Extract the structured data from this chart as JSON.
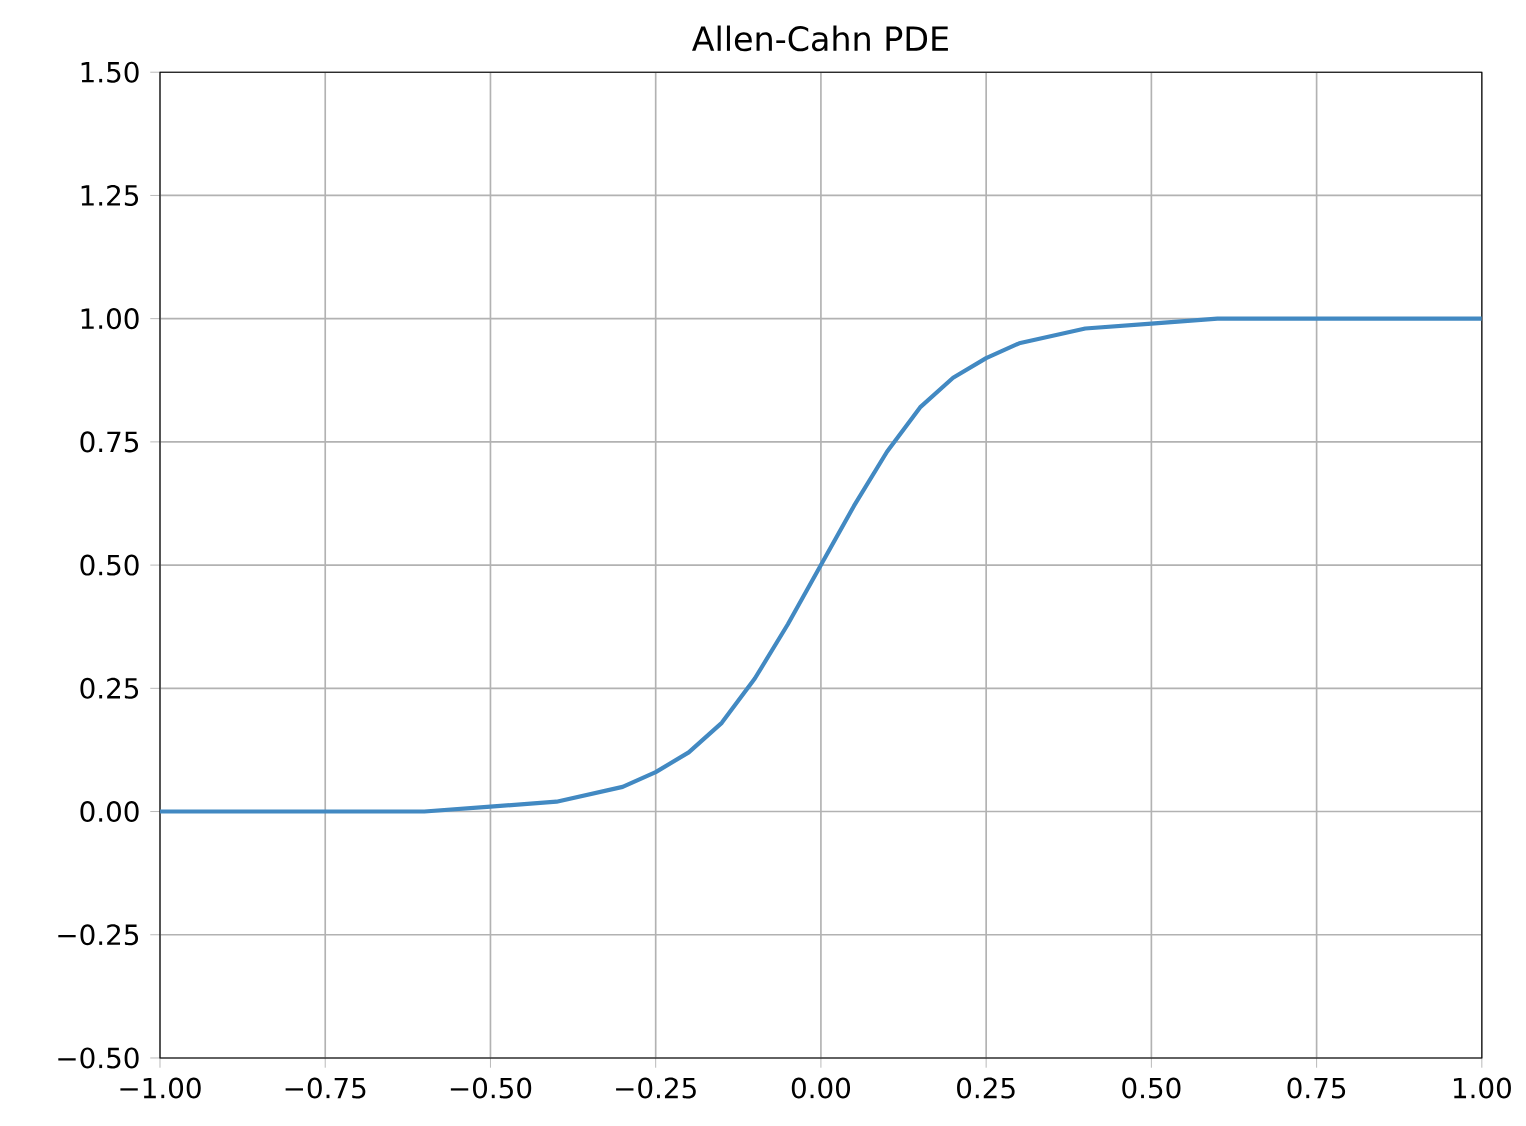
{
  "chart_data": {
    "type": "line",
    "title": "Allen-Cahn PDE",
    "series": [
      {
        "color": "#4289c2",
        "x": [
          -1,
          -0.9,
          -0.8,
          -0.7,
          -0.6,
          -0.5,
          -0.4,
          -0.3,
          -0.25,
          -0.2,
          -0.15,
          -0.1,
          -0.05,
          0,
          0.05,
          0.1,
          0.15,
          0.2,
          0.25,
          0.3,
          0.4,
          0.5,
          0.6,
          0.7,
          0.8,
          0.9,
          1
        ],
        "values": [
          0,
          0,
          0,
          0,
          0,
          0.01,
          0.02,
          0.05,
          0.08,
          0.12,
          0.18,
          0.27,
          0.38,
          0.5,
          0.62,
          0.73,
          0.82,
          0.88,
          0.92,
          0.95,
          0.98,
          0.99,
          1,
          1,
          1,
          1,
          1
        ]
      }
    ],
    "xlim": [
      -1,
      1
    ],
    "ylim": [
      -0.5,
      1.5
    ],
    "xticks": [
      {
        "value": -1,
        "label": "−1.00"
      },
      {
        "value": -0.75,
        "label": "−0.75"
      },
      {
        "value": -0.5,
        "label": "−0.50"
      },
      {
        "value": -0.25,
        "label": "−0.25"
      },
      {
        "value": 0,
        "label": "0.00"
      },
      {
        "value": 0.25,
        "label": "0.25"
      },
      {
        "value": 0.5,
        "label": "0.50"
      },
      {
        "value": 0.75,
        "label": "0.75"
      },
      {
        "value": 1,
        "label": "1.00"
      }
    ],
    "yticks": [
      {
        "value": -0.5,
        "label": "−0.50"
      },
      {
        "value": -0.25,
        "label": "−0.25"
      },
      {
        "value": 0,
        "label": "0.00"
      },
      {
        "value": 0.25,
        "label": "0.25"
      },
      {
        "value": 0.5,
        "label": "0.50"
      },
      {
        "value": 0.75,
        "label": "0.75"
      },
      {
        "value": 1,
        "label": "1.00"
      },
      {
        "value": 1.25,
        "label": "1.25"
      },
      {
        "value": 1.5,
        "label": "1.50"
      }
    ],
    "grid": true,
    "marker": "none",
    "line_style": "solid"
  }
}
